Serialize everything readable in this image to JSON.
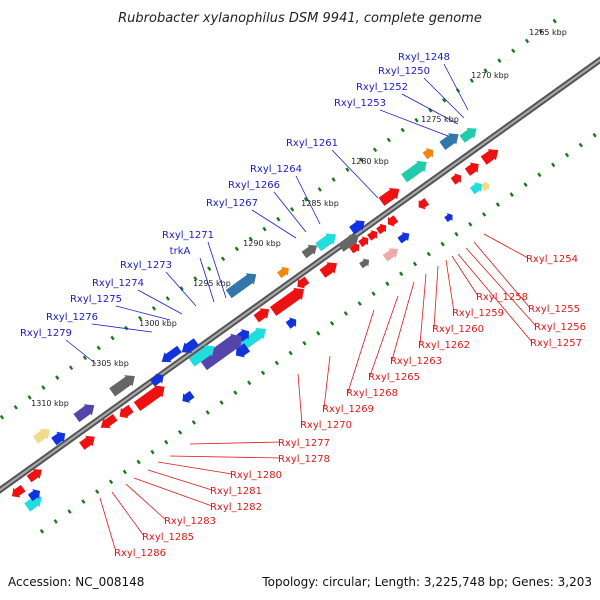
{
  "title": "Rubrobacter xylanophilus DSM 9941, complete genome",
  "footer": {
    "accession": "Accession: NC_008148",
    "topology": "Topology: circular; Length: 3,225,748 bp; Genes: 3,203"
  },
  "kbp_labels": [
    "1265 kbp",
    "1270 kbp",
    "1275 kbp",
    "1280 kbp",
    "1285 kbp",
    "1290 kbp",
    "1295 kbp",
    "1300 kbp",
    "1305 kbp",
    "1310 kbp"
  ],
  "labels_left": [
    "Rxyl_1248",
    "Rxyl_1250",
    "Rxyl_1252",
    "Rxyl_1253",
    "Rxyl_1261",
    "Rxyl_1264",
    "Rxyl_1266",
    "Rxyl_1267",
    "Rxyl_1271",
    "trkA",
    "Rxyl_1273",
    "Rxyl_1274",
    "Rxyl_1275",
    "Rxyl_1276",
    "Rxyl_1279"
  ],
  "labels_right": [
    "Rxyl_1254",
    "Rxyl_1255",
    "Rxyl_1256",
    "Rxyl_1257",
    "Rxyl_1258",
    "Rxyl_1259",
    "Rxyl_1260",
    "Rxyl_1262",
    "Rxyl_1263",
    "Rxyl_1265",
    "Rxyl_1268",
    "Rxyl_1269",
    "Rxyl_1270",
    "Rxyl_1277",
    "Rxyl_1278",
    "Rxyl_1280",
    "Rxyl_1281",
    "Rxyl_1282",
    "Rxyl_1283",
    "Rxyl_1285",
    "Rxyl_1286"
  ],
  "colors": {
    "forward_label": "#1a1acc",
    "reverse_label": "#e01818",
    "backbone": "#777777",
    "tick": "#1a7a1a",
    "red": "#ee1111",
    "blue": "#1133dd",
    "cyan": "#22dddd",
    "gray": "#666666",
    "purple": "#5544aa",
    "steel": "#3377aa",
    "teal": "#22ccaa",
    "orange": "#ee8811",
    "yellow": "#eedd88",
    "pink": "#eeaaaa"
  }
}
